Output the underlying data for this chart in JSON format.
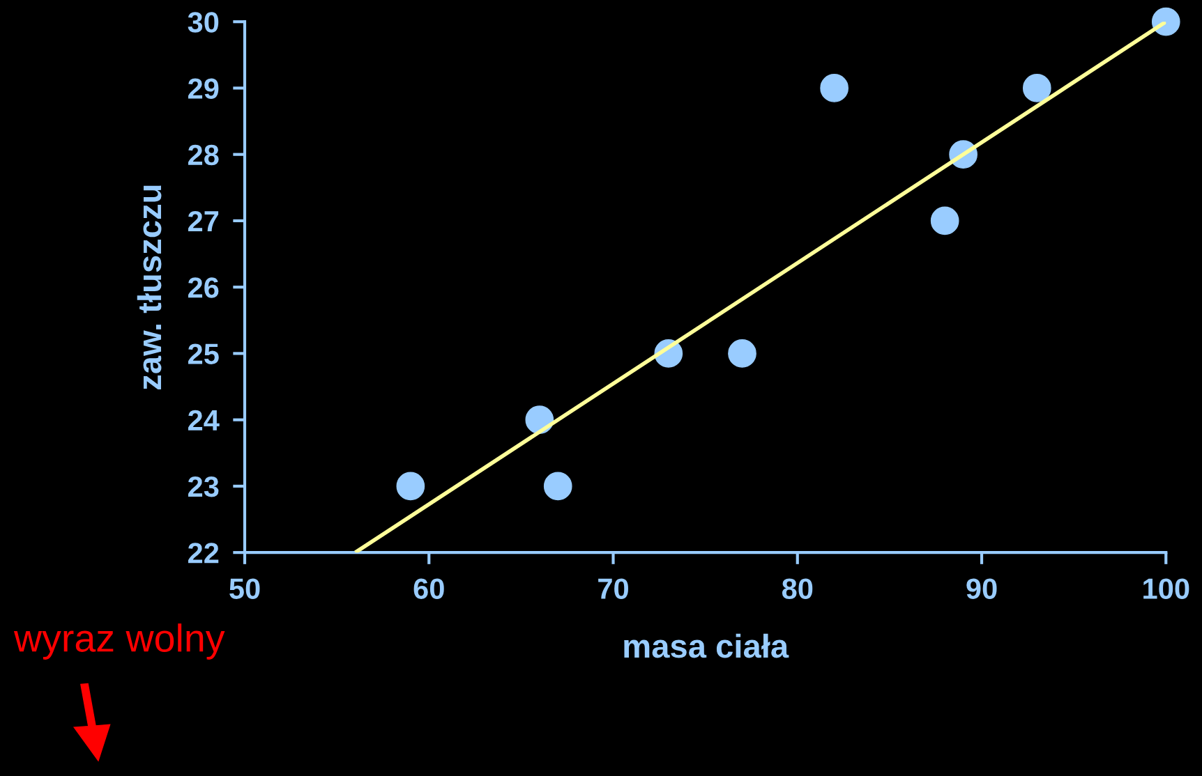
{
  "chart_data": {
    "type": "scatter",
    "xlabel": "masa ciała",
    "ylabel": "zaw. tłuszczu",
    "x": [
      59,
      66,
      67,
      73,
      77,
      82,
      88,
      89,
      93,
      100
    ],
    "series": [
      {
        "color": "#99ccff",
        "marker": "circle",
        "values": [
          23,
          24,
          23,
          25,
          25,
          29,
          27,
          28,
          29,
          30
        ]
      },
      {
        "type": "line",
        "color": "#ffff99",
        "x": [
          56,
          100
        ],
        "values": [
          22,
          30
        ]
      }
    ],
    "xlim": [
      50,
      100
    ],
    "xticks": [
      50,
      60,
      70,
      80,
      90,
      100
    ],
    "ylim": [
      22,
      30
    ],
    "yticks": [
      22,
      23,
      24,
      25,
      26,
      27,
      28,
      29,
      30
    ],
    "grid": false,
    "annotations": [
      "wyraz wolny"
    ]
  }
}
